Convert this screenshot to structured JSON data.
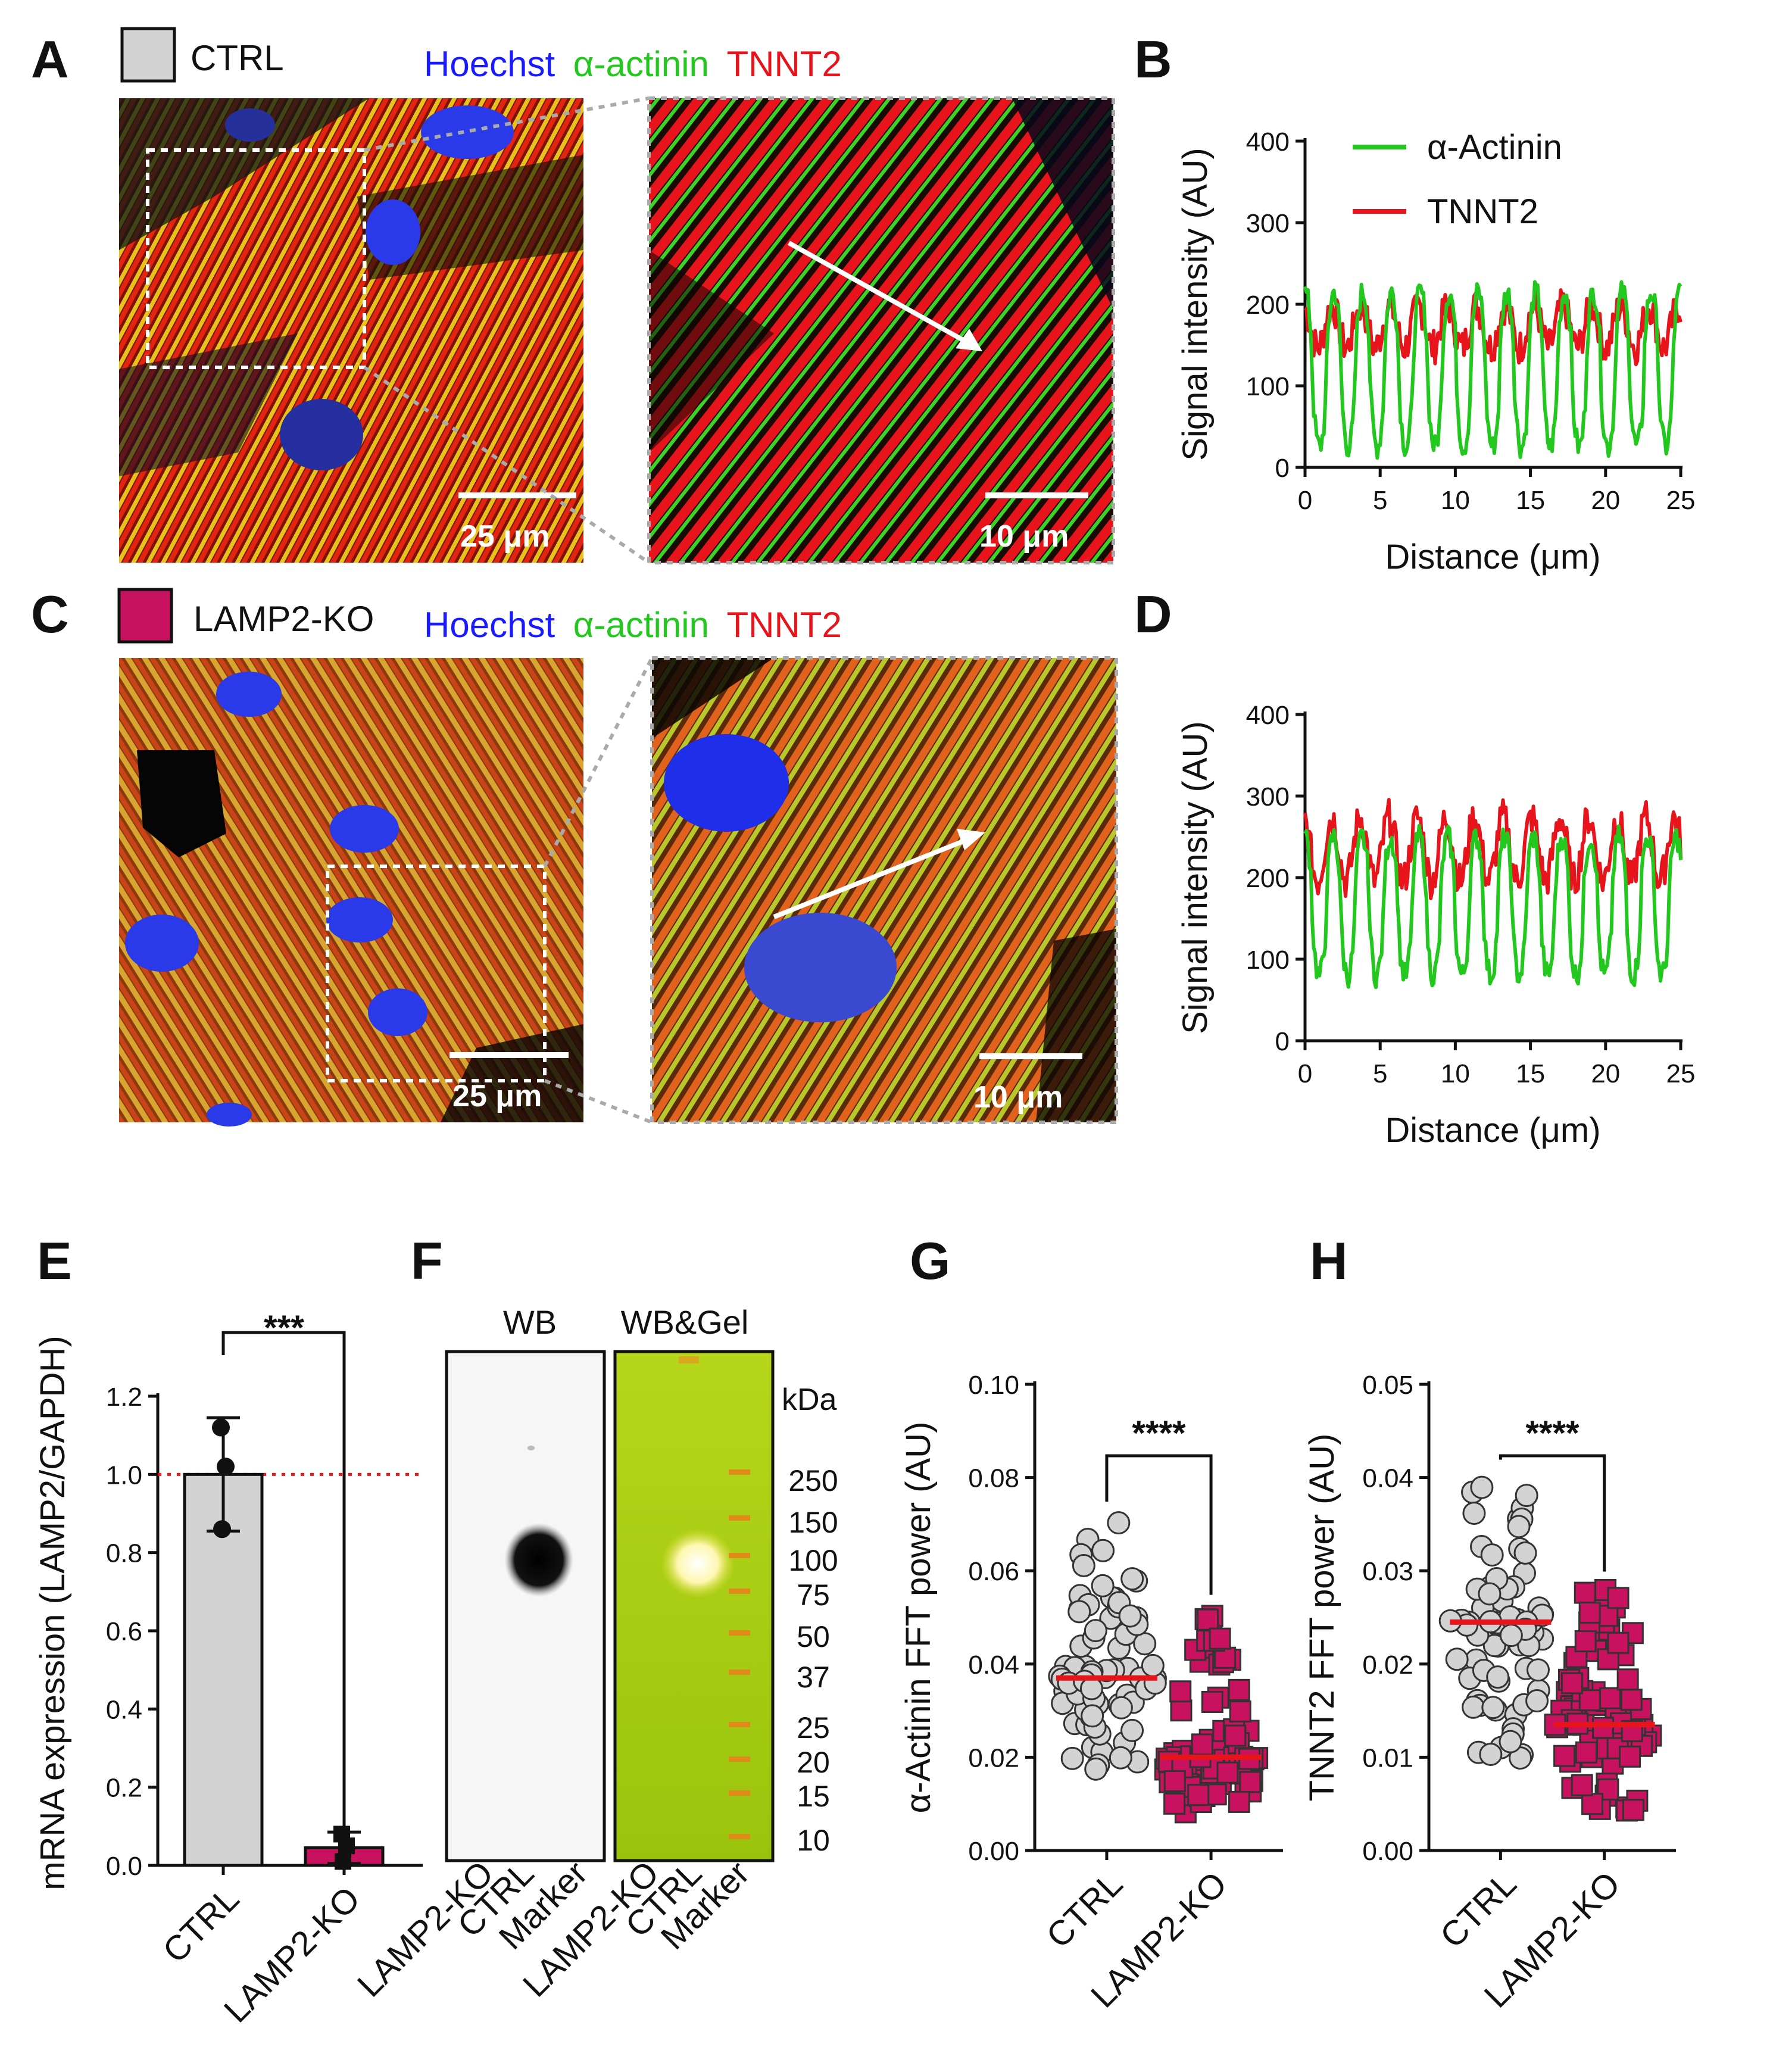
{
  "panels": {
    "A": {
      "label": "A",
      "legend": "CTRL",
      "stain": [
        "Hoechst",
        "α-actinin",
        "TNNT2"
      ],
      "scale_main": "25 μm",
      "scale_zoom": "10 μm"
    },
    "B": {
      "label": "B"
    },
    "C": {
      "label": "C",
      "legend": "LAMP2-KO",
      "stain": [
        "Hoechst",
        "α-actinin",
        "TNNT2"
      ],
      "scale_main": "25 μm",
      "scale_zoom": "10 μm"
    },
    "D": {
      "label": "D"
    },
    "E": {
      "label": "E",
      "sig": "***"
    },
    "F": {
      "label": "F",
      "wb": "WB",
      "wbgel": "WB&Gel",
      "kda": "kDa",
      "markers": [
        "250",
        "150",
        "100",
        "75",
        "50",
        "37",
        "25",
        "20",
        "15",
        "10"
      ],
      "lanes": [
        "LAMP2-KO",
        "CTRL",
        "Marker",
        "LAMP2-KO",
        "CTRL",
        "Marker"
      ]
    },
    "G": {
      "label": "G",
      "sig": "****"
    },
    "H": {
      "label": "H",
      "sig": "****"
    }
  },
  "colors": {
    "hoechst": "#1a1aff",
    "actinin": "#22c81e",
    "tnnt2": "#e8141c",
    "ctrl": "#d3d3d3",
    "ko": "#c8115f",
    "mean": "#e8141c"
  },
  "chart_data": [
    {
      "id": "B",
      "type": "line",
      "title": "",
      "xlabel": "Distance (μm)",
      "ylabel": "Signal intensity (AU)",
      "xlim": [
        0,
        25
      ],
      "ylim": [
        0,
        400
      ],
      "xticks": [
        "0",
        "5",
        "10",
        "15",
        "20",
        "25"
      ],
      "yticks": [
        "0",
        "100",
        "200",
        "300",
        "400"
      ],
      "legend": [
        "α-Actinin",
        "TNNT2"
      ],
      "series": [
        {
          "name": "α-Actinin",
          "period": 1.92,
          "min": 25,
          "max": 215
        },
        {
          "name": "TNNT2",
          "period": 1.92,
          "min": 130,
          "max": 215
        }
      ]
    },
    {
      "id": "D",
      "type": "line",
      "title": "",
      "xlabel": "Distance (μm)",
      "ylabel": "Signal intensity (AU)",
      "xlim": [
        0,
        25
      ],
      "ylim": [
        0,
        400
      ],
      "xticks": [
        "0",
        "5",
        "10",
        "15",
        "20",
        "25"
      ],
      "yticks": [
        "0",
        "100",
        "200",
        "300",
        "400"
      ],
      "series": [
        {
          "name": "α-Actinin",
          "period": 1.9,
          "min": 80,
          "max": 250
        },
        {
          "name": "TNNT2",
          "period": 1.9,
          "min": 170,
          "max": 300
        }
      ]
    },
    {
      "id": "E",
      "type": "bar",
      "ylabel": "mRNA expression (LAMP2/GAPDH)",
      "categories": [
        "CTRL",
        "LAMP2-KO"
      ],
      "values": [
        1.0,
        0.045
      ],
      "errors": [
        0.145,
        0.04
      ],
      "points": [
        [
          1.12,
          1.02,
          0.86
        ],
        [
          0.08,
          0.05,
          0.01
        ]
      ],
      "reference": 1.0,
      "ylim": [
        0,
        1.2
      ],
      "yticks": [
        "0.0",
        "0.2",
        "0.4",
        "0.6",
        "0.8",
        "1.0",
        "1.2"
      ]
    },
    {
      "id": "G",
      "type": "scatter",
      "ylabel": "α-Actinin FFT power (AU)",
      "categories": [
        "CTRL",
        "LAMP2-KO"
      ],
      "means": [
        0.037,
        0.02
      ],
      "ranges": [
        [
          0.017,
          0.071
        ],
        [
          0.008,
          0.051
        ]
      ],
      "ylim": [
        0,
        0.1
      ],
      "yticks": [
        "0.00",
        "0.02",
        "0.04",
        "0.06",
        "0.08",
        "0.10"
      ]
    },
    {
      "id": "H",
      "type": "scatter",
      "ylabel": "TNNT2 FFT power (AU)",
      "categories": [
        "CTRL",
        "LAMP2-KO"
      ],
      "means": [
        0.0245,
        0.0135
      ],
      "ranges": [
        [
          0.009,
          0.04
        ],
        [
          0.004,
          0.028
        ]
      ],
      "ylim": [
        0,
        0.05
      ],
      "yticks": [
        "0.00",
        "0.01",
        "0.02",
        "0.03",
        "0.04",
        "0.05"
      ]
    }
  ]
}
